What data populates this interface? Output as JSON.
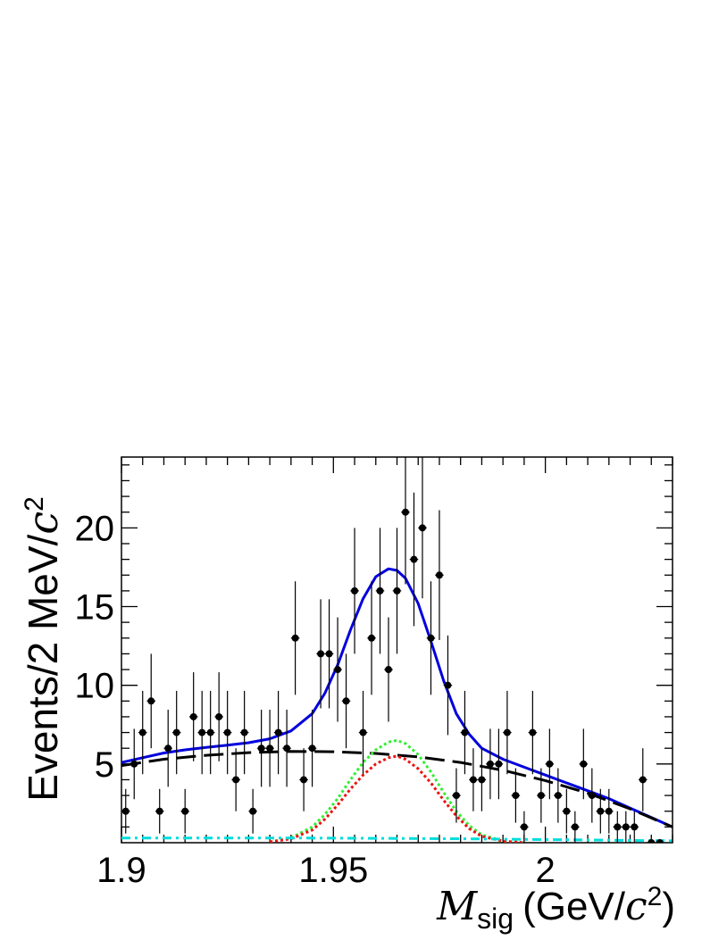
{
  "chart_data": {
    "type": "scatter",
    "title": "",
    "xlabel": {
      "symbol": "M",
      "subscript": "sig",
      "unit_prefix": "(GeV/",
      "unit_c": "c",
      "unit_exp": "2",
      "unit_suffix": ")"
    },
    "ylabel": {
      "prefix": "Events/2 MeV/",
      "c": "c",
      "exp": "2"
    },
    "xlim": [
      1.9,
      2.03
    ],
    "ylim": [
      0,
      24.5
    ],
    "x_ticks": [
      {
        "value": 1.9,
        "label": "1.9"
      },
      {
        "value": 1.95,
        "label": "1.95"
      },
      {
        "value": 2.0,
        "label": "2"
      }
    ],
    "y_ticks": [
      {
        "value": 5,
        "label": "5"
      },
      {
        "value": 10,
        "label": "10"
      },
      {
        "value": 15,
        "label": "15"
      },
      {
        "value": 20,
        "label": "20"
      }
    ],
    "colors": {
      "data": "#000000",
      "total_fit": "#0000dd",
      "background": "#000000",
      "signal_green": "#33ee33",
      "signal_red": "#ee1111",
      "peaking_bkg": "#00dddd"
    },
    "data_points": {
      "x": [
        1.901,
        1.903,
        1.905,
        1.907,
        1.909,
        1.911,
        1.913,
        1.915,
        1.917,
        1.919,
        1.921,
        1.923,
        1.925,
        1.927,
        1.929,
        1.931,
        1.933,
        1.935,
        1.937,
        1.939,
        1.941,
        1.943,
        1.945,
        1.947,
        1.949,
        1.951,
        1.953,
        1.955,
        1.957,
        1.959,
        1.961,
        1.963,
        1.965,
        1.967,
        1.969,
        1.971,
        1.973,
        1.975,
        1.977,
        1.979,
        1.981,
        1.983,
        1.985,
        1.987,
        1.989,
        1.991,
        1.993,
        1.995,
        1.997,
        1.999,
        2.001,
        2.003,
        2.005,
        2.007,
        2.009,
        2.011,
        2.013,
        2.015,
        2.017,
        2.019,
        2.021,
        2.023,
        2.025,
        2.027
      ],
      "y": [
        2,
        5,
        7,
        9,
        2,
        6,
        7,
        2,
        8,
        7,
        7,
        8,
        7,
        4,
        7,
        2,
        6,
        6,
        7,
        6,
        13,
        4,
        6,
        12,
        12,
        11,
        9,
        16,
        7,
        13,
        16,
        11,
        16,
        21,
        18,
        20,
        13,
        17,
        10,
        3,
        7,
        4,
        4,
        5,
        5,
        7,
        3,
        1,
        7,
        3,
        5,
        3,
        2,
        1,
        5,
        3,
        2,
        2,
        1,
        1,
        1,
        4,
        0,
        0
      ]
    },
    "curves": [
      {
        "name": "",
        "style": "solid",
        "color_key": "total_fit",
        "x": [
          1.9,
          1.905,
          1.91,
          1.915,
          1.92,
          1.925,
          1.93,
          1.935,
          1.94,
          1.945,
          1.948,
          1.951,
          1.954,
          1.957,
          1.96,
          1.963,
          1.965,
          1.967,
          1.97,
          1.973,
          1.976,
          1.979,
          1.982,
          1.985,
          1.99,
          1.995,
          2.0,
          2.005,
          2.01,
          2.015,
          2.02,
          2.025,
          2.03
        ],
        "y": [
          5.1,
          5.4,
          5.7,
          5.9,
          6.05,
          6.2,
          6.35,
          6.6,
          7.1,
          8.2,
          9.5,
          11.3,
          13.5,
          15.5,
          16.9,
          17.4,
          17.3,
          16.8,
          15.2,
          12.8,
          10.3,
          8.2,
          6.9,
          6.0,
          5.3,
          4.8,
          4.3,
          3.8,
          3.3,
          2.8,
          2.2,
          1.6,
          1.0
        ]
      },
      {
        "name": "",
        "style": "dashed",
        "color_key": "background",
        "x": [
          1.9,
          1.91,
          1.92,
          1.93,
          1.94,
          1.95,
          1.96,
          1.97,
          1.98,
          1.99,
          2.0,
          2.01,
          2.02,
          2.03
        ],
        "y": [
          4.9,
          5.3,
          5.55,
          5.72,
          5.8,
          5.78,
          5.67,
          5.45,
          5.1,
          4.6,
          3.95,
          3.15,
          2.15,
          1.0
        ]
      },
      {
        "name": "",
        "style": "dotted",
        "color_key": "signal_green",
        "x": [
          1.935,
          1.94,
          1.945,
          1.948,
          1.951,
          1.954,
          1.957,
          1.96,
          1.963,
          1.965,
          1.967,
          1.97,
          1.973,
          1.976,
          1.979,
          1.982,
          1.985,
          1.99,
          1.995
        ],
        "y": [
          0.05,
          0.3,
          1.0,
          1.8,
          2.8,
          4.0,
          5.1,
          5.9,
          6.4,
          6.5,
          6.3,
          5.6,
          4.5,
          3.2,
          2.0,
          1.1,
          0.5,
          0.1,
          0.0
        ]
      },
      {
        "name": "",
        "style": "dotted",
        "color_key": "signal_red",
        "x": [
          1.935,
          1.94,
          1.945,
          1.948,
          1.951,
          1.954,
          1.957,
          1.96,
          1.963,
          1.965,
          1.967,
          1.97,
          1.973,
          1.976,
          1.979,
          1.982,
          1.985,
          1.99,
          1.995
        ],
        "y": [
          0.05,
          0.25,
          0.8,
          1.5,
          2.4,
          3.4,
          4.3,
          5.0,
          5.4,
          5.5,
          5.3,
          4.7,
          3.8,
          2.7,
          1.7,
          0.9,
          0.4,
          0.1,
          0.0
        ]
      },
      {
        "name": "",
        "style": "dashdot",
        "color_key": "peaking_bkg",
        "x": [
          1.9,
          1.92,
          1.94,
          1.96,
          1.98,
          2.0,
          2.02,
          2.03
        ],
        "y": [
          0.3,
          0.3,
          0.3,
          0.28,
          0.25,
          0.2,
          0.15,
          0.12
        ]
      }
    ]
  }
}
